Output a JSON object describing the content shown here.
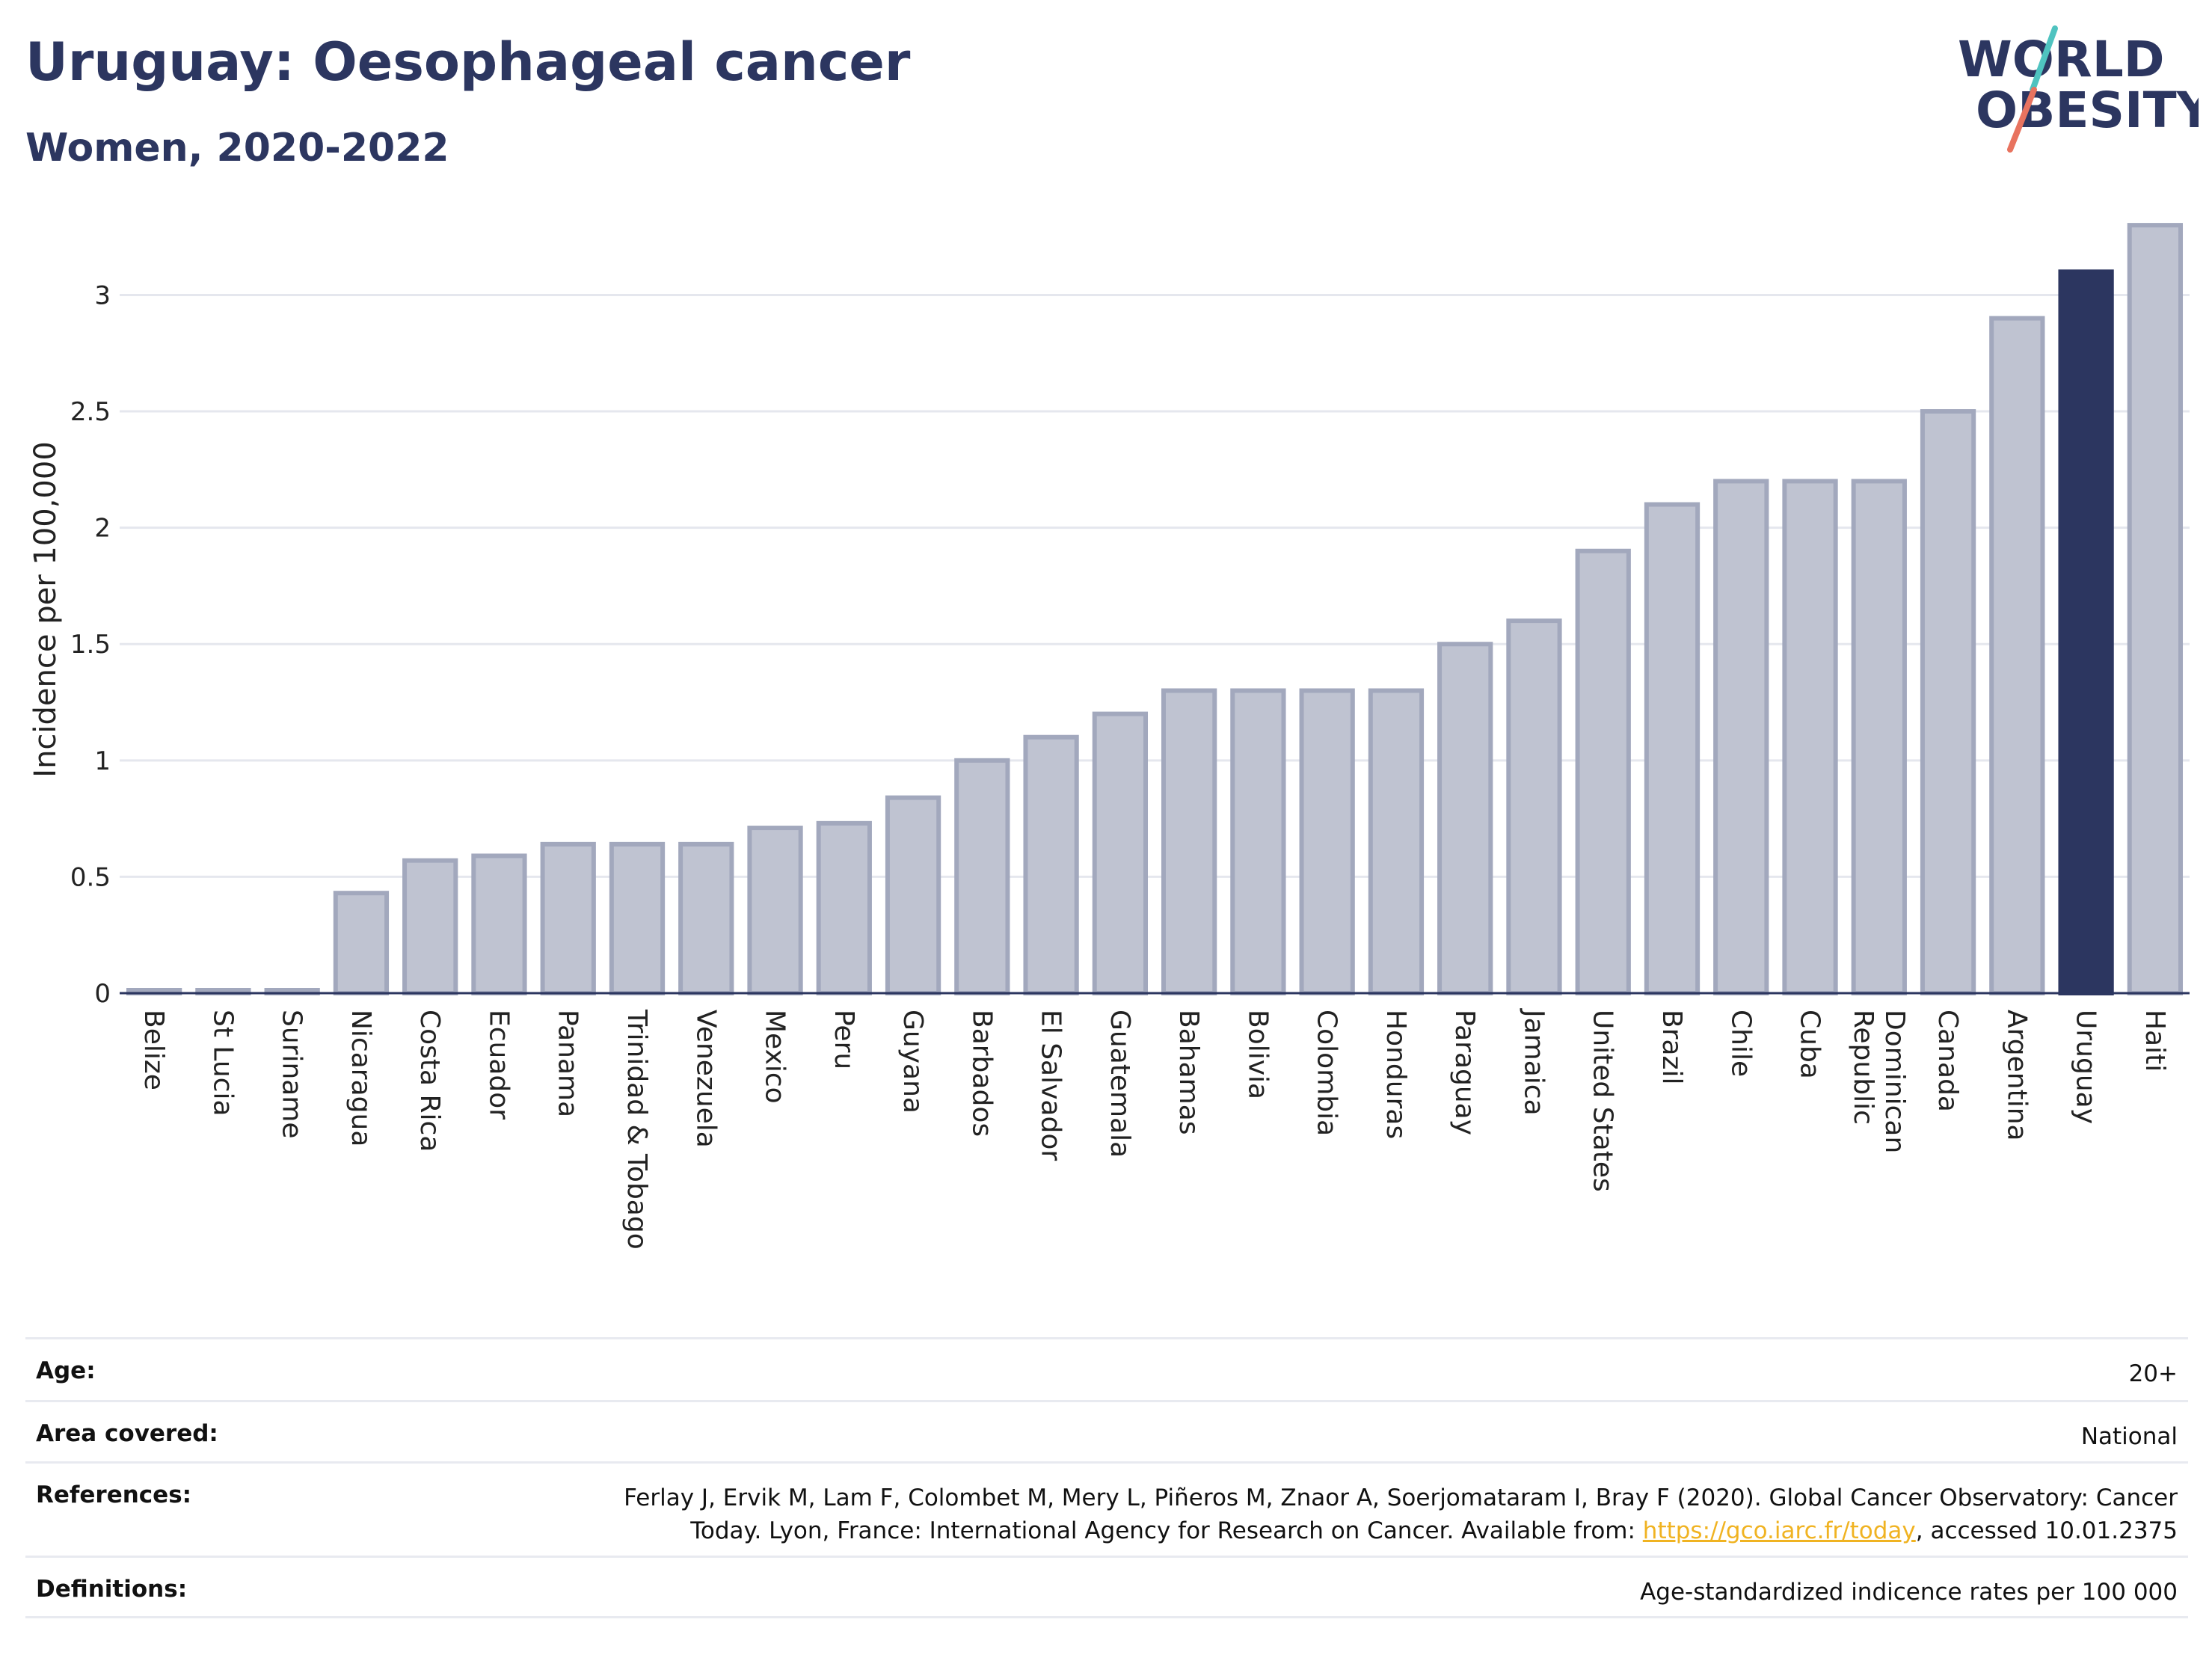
{
  "title": "Uruguay: Oesophageal cancer",
  "subtitle": "Women, 2020-2022",
  "logo": {
    "line1": "WORLD",
    "line2": "OBESITY",
    "slash_colors": [
      "#4fc3c0",
      "#e8735f"
    ]
  },
  "colors": {
    "bar": "#bfc3d1",
    "bar_edge": "#a2a8bd",
    "highlight": "#2c3660",
    "grid": "#e5e7ee",
    "text": "#2c3660"
  },
  "chart_data": {
    "type": "bar",
    "ylabel": "Incidence per 100,000",
    "xlabel": "",
    "ylim": [
      0,
      3.4
    ],
    "yticks": [
      0,
      0.5,
      1,
      1.5,
      2,
      2.5,
      3
    ],
    "ytick_labels": [
      "0",
      "0.5",
      "1",
      "1.5",
      "2",
      "2.5",
      "3"
    ],
    "grid": true,
    "highlight": "Uruguay",
    "categories": [
      "Belize",
      "St Lucia",
      "Suriname",
      "Nicaragua",
      "Costa Rica",
      "Ecuador",
      "Panama",
      "Trinidad & Tobago",
      "Venezuela",
      "Mexico",
      "Peru",
      "Guyana",
      "Barbados",
      "El Salvador",
      "Guatemala",
      "Bahamas",
      "Bolivia",
      "Colombia",
      "Honduras",
      "Paraguay",
      "Jamaica",
      "United States",
      "Brazil",
      "Chile",
      "Cuba",
      "Dominican Republic",
      "Canada",
      "Argentina",
      "Uruguay",
      "Haiti"
    ],
    "category_lines": [
      [
        "Belize"
      ],
      [
        "St Lucia"
      ],
      [
        "Suriname"
      ],
      [
        "Nicaragua"
      ],
      [
        "Costa Rica"
      ],
      [
        "Ecuador"
      ],
      [
        "Panama"
      ],
      [
        "Trinidad & Tobago"
      ],
      [
        "Venezuela"
      ],
      [
        "Mexico"
      ],
      [
        "Peru"
      ],
      [
        "Guyana"
      ],
      [
        "Barbados"
      ],
      [
        "El Salvador"
      ],
      [
        "Guatemala"
      ],
      [
        "Bahamas"
      ],
      [
        "Bolivia"
      ],
      [
        "Colombia"
      ],
      [
        "Honduras"
      ],
      [
        "Paraguay"
      ],
      [
        "Jamaica"
      ],
      [
        "United States"
      ],
      [
        "Brazil"
      ],
      [
        "Chile"
      ],
      [
        "Cuba"
      ],
      [
        "Dominican",
        "Republic"
      ],
      [
        "Canada"
      ],
      [
        "Argentina"
      ],
      [
        "Uruguay"
      ],
      [
        "Haiti"
      ]
    ],
    "values": [
      0.01,
      0.01,
      0.01,
      0.43,
      0.57,
      0.59,
      0.64,
      0.64,
      0.64,
      0.71,
      0.73,
      0.84,
      1.0,
      1.1,
      1.2,
      1.3,
      1.3,
      1.3,
      1.3,
      1.5,
      1.6,
      1.9,
      2.1,
      2.2,
      2.2,
      2.2,
      2.5,
      2.9,
      3.1,
      3.3
    ]
  },
  "meta": {
    "age_label": "Age:",
    "age_value": "20+",
    "area_label": "Area covered:",
    "area_value": "National",
    "references_label": "References:",
    "references_line1": "Ferlay J, Ervik M, Lam F, Colombet M, Mery L, Piñeros M, Znaor A, Soerjomataram I, Bray F (2020). Global Cancer Observatory: Cancer",
    "references_line2_pre": "Today. Lyon, France: International Agency for Research on Cancer. Available from: ",
    "references_link": "https://gco.iarc.fr/today",
    "references_line2_post": ", accessed 10.01.2375",
    "definitions_label": "Definitions:",
    "definitions_value": "Age-standardized indicence rates per 100 000"
  }
}
